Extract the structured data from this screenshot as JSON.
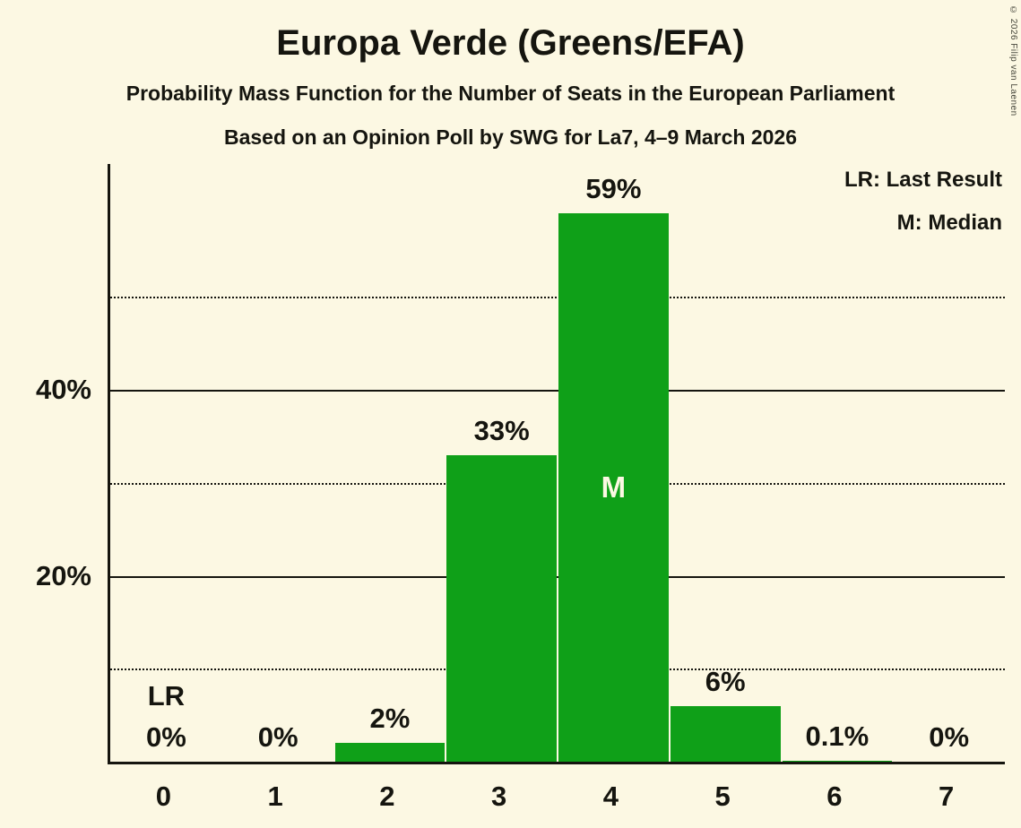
{
  "title": "Europa Verde (Greens/EFA)",
  "subtitle": "Probability Mass Function for the Number of Seats in the European Parliament",
  "poll_line": "Based on an Opinion Poll by SWG for La7, 4–9 March 2026",
  "copyright": "© 2026 Filip van Laenen",
  "legend": {
    "lr": "LR: Last Result",
    "m": "M: Median"
  },
  "colors": {
    "background": "#FCF8E3",
    "bar": "#0FA018",
    "ink": "#15150F"
  },
  "chart_data": {
    "type": "bar",
    "title": "Europa Verde (Greens/EFA) — Probability Mass Function for the Number of Seats in the European Parliament",
    "subtitle": "Based on an Opinion Poll by SWG for La7, 4–9 March 2026",
    "categories": [
      "0",
      "1",
      "2",
      "3",
      "4",
      "5",
      "6",
      "7"
    ],
    "values": [
      0,
      0,
      2,
      33,
      59,
      6,
      0.1,
      0
    ],
    "value_labels": [
      "0%",
      "0%",
      "2%",
      "33%",
      "59%",
      "6%",
      "0.1%",
      "0%"
    ],
    "xlabel": "",
    "ylabel": "",
    "ylim": [
      0,
      64.3
    ],
    "yticks": [
      {
        "value": 20,
        "label": "20%"
      },
      {
        "value": 40,
        "label": "40%"
      }
    ],
    "solid_gridlines": [
      20,
      40
    ],
    "dotted_gridlines": [
      10,
      30,
      50
    ],
    "grid": true,
    "legend_position": "top-right",
    "annotations": {
      "lr_label": "LR",
      "last_result_seat_index": 0,
      "median_label": "M",
      "median_seat_index": 4
    }
  }
}
